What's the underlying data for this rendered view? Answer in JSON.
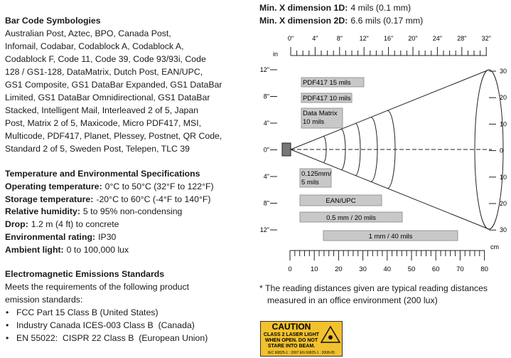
{
  "left": {
    "symbologies": {
      "title": "Bar Code Symbologies",
      "lines": [
        "Australian Post, Aztec, BPO, Canada Post,",
        "Infomail, Codabar, Codablock A, Codablock A,",
        "Codablock F, Code 11, Code 39, Code 93/93i, Code",
        "128 / GS1-128, DataMatrix, Dutch Post, EAN/UPC,",
        "GS1 Composite, GS1 DataBar Expanded, GS1 DataBar",
        "Limited, GS1 DataBar Omnidirectional, GS1 DataBar",
        "Stacked, Intelligent Mail, Interleaved 2 of 5, Japan",
        "Post, Matrix 2 of 5, Maxicode, Micro PDF417, MSI,",
        "Multicode, PDF417, Planet, Plessey, Postnet, QR Code,",
        "Standard 2 of 5, Sweden Post, Telepen, TLC 39"
      ]
    },
    "environment": {
      "title": "Temperature and Environmental Specifications",
      "items": [
        {
          "label": "Operating temperature:",
          "value": "0°C to 50°C (32°F to 122°F)"
        },
        {
          "label": "Storage temperature:",
          "value": "-20°C to 60°C (-4°F to 140°F)"
        },
        {
          "label": "Relative humidity:",
          "value": "5 to 95% non-condensing"
        },
        {
          "label": "Drop:",
          "value": "1.2 m (4 ft) to concrete"
        },
        {
          "label": "Environmental rating:",
          "value": "IP30"
        },
        {
          "label": "Ambient light:",
          "value": "0 to 100,000 lux"
        }
      ]
    },
    "emissions": {
      "title": "Electromagnetic Emissions Standards",
      "intro": [
        "Meets the requirements of the following product",
        "emission standards:"
      ],
      "bullets": [
        "FCC Part 15 Class B (United States)",
        "Industry Canada ICES-003 Class B  (Canada)",
        "EN 55022:  CISPR 22 Class B  (European Union)"
      ]
    }
  },
  "header": [
    {
      "label": "Min. X dimension 1D:",
      "value": "4 mils (0.1 mm)"
    },
    {
      "label": "Min. X dimension 2D:",
      "value": "6.6 mils (0.17 mm)"
    }
  ],
  "diagram": {
    "inch_unit": "in",
    "inch_ticks": [
      "0\"",
      "4\"",
      "8\"",
      "12\"",
      "16\"",
      "20\"",
      "24\"",
      "28\"",
      "32\""
    ],
    "inch_side": [
      "12\"",
      "8\"",
      "4\"",
      "0\"",
      "4\"",
      "8\"",
      "12\""
    ],
    "cm_side": [
      "30",
      "20",
      "10",
      "0",
      "10",
      "20",
      "30"
    ],
    "cm_unit": "cm",
    "cm_ticks": [
      "0",
      "10",
      "20",
      "30",
      "40",
      "50",
      "60",
      "70",
      "80"
    ],
    "bars": [
      {
        "label": [
          "PDF417 15 mils"
        ]
      },
      {
        "label": [
          "PDF417 10 mils"
        ]
      },
      {
        "label": [
          "Data Matrix",
          "10 mils"
        ]
      },
      {
        "label": [
          "0.125mm/",
          "5 mils"
        ]
      },
      {
        "label": [
          "EAN/UPC"
        ]
      },
      {
        "label": [
          "0.5 mm / 20 mils"
        ]
      },
      {
        "label": [
          "1 mm / 40 mils"
        ]
      }
    ]
  },
  "footnote": [
    "* The reading distances given are typical reading distances",
    "measured in an office environment (200 lux)"
  ],
  "caution": {
    "title": "CAUTION",
    "lines": [
      "CLASS 2 LASER LIGHT",
      "WHEN OPEN. DO NOT",
      "STARE INTO BEAM."
    ],
    "standards": "IEC 60825-1 : 2007   EN 60825-1 : 2008-05"
  }
}
